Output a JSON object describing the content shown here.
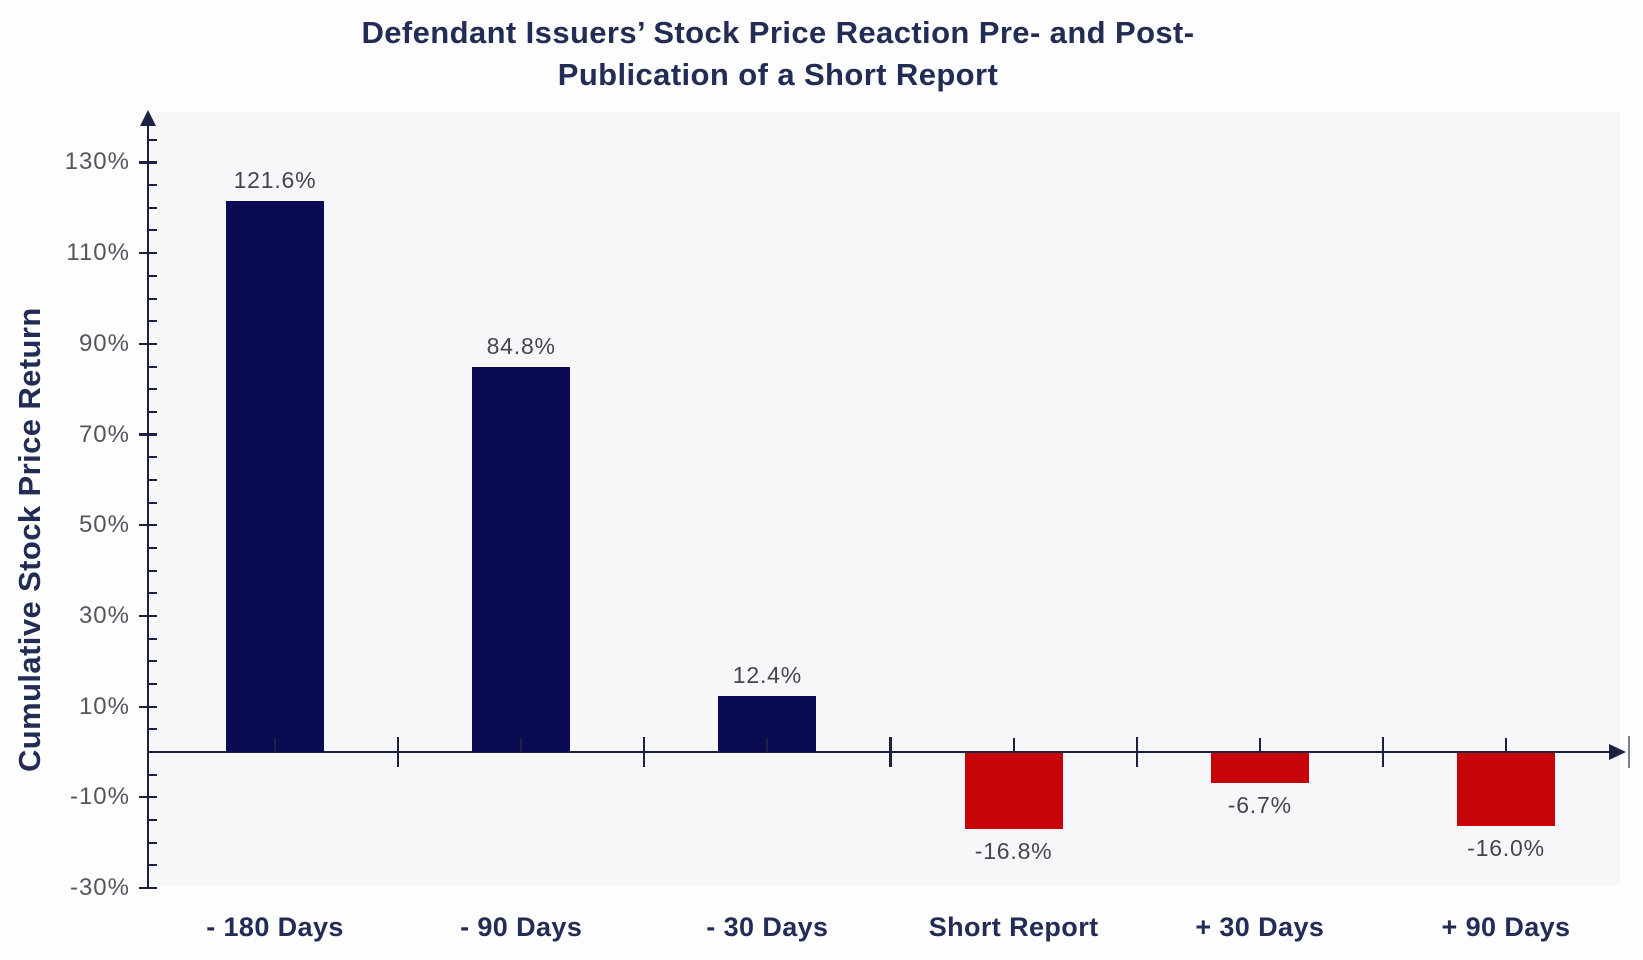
{
  "chart_data": {
    "type": "bar",
    "title": "Defendant Issuers’ Stock Price Reaction Pre- and Post-Publication of a Short Report",
    "title_lines": [
      "Defendant Issuers’ Stock Price Reaction Pre- and Post-",
      "Publication of a Short Report"
    ],
    "ylabel": "Cumulative Stock Price Return",
    "xlabel": "",
    "categories": [
      "- 180 Days",
      "- 90 Days",
      "- 30 Days",
      "Short Report",
      "+ 30 Days",
      "+ 90 Days"
    ],
    "values": [
      121.6,
      84.8,
      12.4,
      -16.8,
      -6.7,
      -16.0
    ],
    "value_labels": [
      "121.6%",
      "84.8%",
      "12.4%",
      "-16.8%",
      "-6.7%",
      "-16.0%"
    ],
    "y_ticks": [
      {
        "label": "130%",
        "value": 130
      },
      {
        "label": "110%",
        "value": 110
      },
      {
        "label": "90%",
        "value": 90
      },
      {
        "label": "70%",
        "value": 70
      },
      {
        "label": "50%",
        "value": 50
      },
      {
        "label": "30%",
        "value": 30
      },
      {
        "label": "10%",
        "value": 10
      },
      {
        "label": "-10%",
        "value": -10
      },
      {
        "label": "-30%",
        "value": -30
      }
    ],
    "y_minor_tick_step": 5,
    "ylim": [
      -30,
      135
    ],
    "grid": false,
    "legend": "none",
    "colors": {
      "positive_bar": "#0b0b54",
      "negative_bar": "#c70408",
      "axis": "#1c2240",
      "end_tick": "#80838f",
      "title_text": "#232c55",
      "category_text": "#232c55",
      "y_tick_label_text": "#55555e",
      "value_label_text": "#45454f",
      "plot_background": "#f7f7fa",
      "page_background": "#fdfdfe"
    }
  }
}
